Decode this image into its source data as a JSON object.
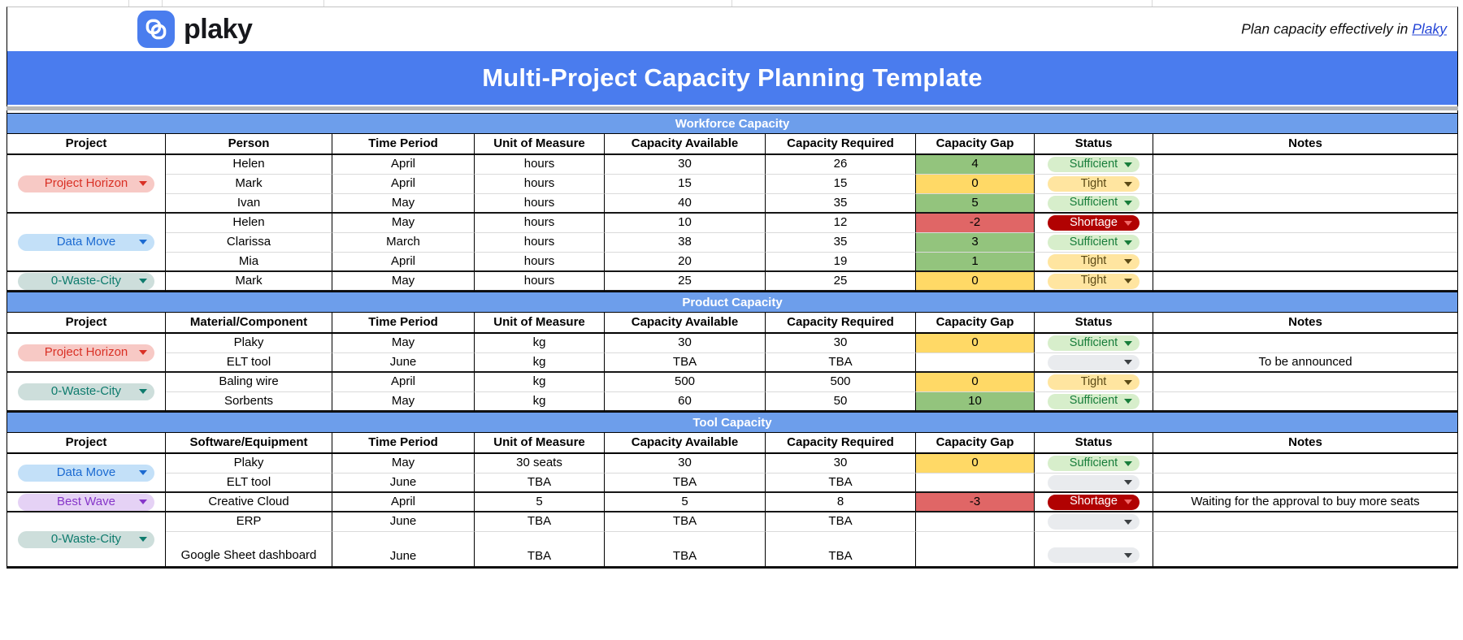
{
  "topbar": {
    "logo_text": "plaky",
    "tagline_prefix": "Plan capacity effectively in ",
    "tagline_link": "Plaky"
  },
  "banner": {
    "title": "Multi-Project Capacity Planning Template"
  },
  "colors": {
    "banner": "#4a7cee",
    "section_bar": "#6d9eeb",
    "logo_badge": "#4a7dee",
    "link": "#2546d6",
    "gap": {
      "green": "#93c47d",
      "yellow": "#ffd966",
      "red": "#e06666"
    }
  },
  "project_themes": {
    "red": {
      "bg": "#f7c9c5",
      "fg": "#d93025"
    },
    "blue": {
      "bg": "#c3e0f8",
      "fg": "#1b6ad1"
    },
    "teal": {
      "bg": "#cddedb",
      "fg": "#0e7b6d"
    },
    "purple": {
      "bg": "#e5d2f5",
      "fg": "#8636c9"
    }
  },
  "status_themes": {
    "green": {
      "bg": "#d7eecb",
      "fg": "#177d3a",
      "tri": "#177d3a"
    },
    "yellow": {
      "bg": "#ffe5a0",
      "fg": "#5b4a16",
      "tri": "#5b4a16"
    },
    "red": {
      "bg": "#b10202",
      "fg": "#ffffff",
      "tri": "#f06a6a"
    },
    "empty": {
      "bg": "#e9ebee",
      "fg": "#333333",
      "tri": "#3c4043"
    }
  },
  "sections": [
    {
      "title": "Workforce Capacity",
      "columns": [
        "Project",
        "Person",
        "Time Period",
        "Unit of Measure",
        "Capacity Available",
        "Capacity Required",
        "Capacity Gap",
        "Status",
        "Notes"
      ],
      "groups": [
        {
          "project": {
            "label": "Project Horizon",
            "theme": "red"
          },
          "rows": [
            {
              "name": "Helen",
              "period": "April",
              "unit": "hours",
              "available": "30",
              "required": "26",
              "gap": "4",
              "gap_color": "green",
              "status": "Sufficient",
              "status_theme": "green",
              "note": ""
            },
            {
              "name": "Mark",
              "period": "April",
              "unit": "hours",
              "available": "15",
              "required": "15",
              "gap": "0",
              "gap_color": "yellow",
              "status": "Tight",
              "status_theme": "yellow",
              "note": ""
            },
            {
              "name": "Ivan",
              "period": "May",
              "unit": "hours",
              "available": "40",
              "required": "35",
              "gap": "5",
              "gap_color": "green",
              "status": "Sufficient",
              "status_theme": "green",
              "note": ""
            }
          ]
        },
        {
          "project": {
            "label": "Data Move",
            "theme": "blue"
          },
          "rows": [
            {
              "name": "Helen",
              "period": "May",
              "unit": "hours",
              "available": "10",
              "required": "12",
              "gap": "-2",
              "gap_color": "red",
              "status": "Shortage",
              "status_theme": "red",
              "note": ""
            },
            {
              "name": "Clarissa",
              "period": "March",
              "unit": "hours",
              "available": "38",
              "required": "35",
              "gap": "3",
              "gap_color": "green",
              "status": "Sufficient",
              "status_theme": "green",
              "note": ""
            },
            {
              "name": "Mia",
              "period": "April",
              "unit": "hours",
              "available": "20",
              "required": "19",
              "gap": "1",
              "gap_color": "green",
              "status": "Tight",
              "status_theme": "yellow",
              "note": ""
            }
          ]
        },
        {
          "project": {
            "label": "0-Waste-City",
            "theme": "teal"
          },
          "rows": [
            {
              "name": "Mark",
              "period": "May",
              "unit": "hours",
              "available": "25",
              "required": "25",
              "gap": "0",
              "gap_color": "yellow",
              "status": "Tight",
              "status_theme": "yellow",
              "note": ""
            }
          ]
        }
      ]
    },
    {
      "title": "Product Capacity",
      "columns": [
        "Project",
        "Material/Component",
        "Time Period",
        "Unit of Measure",
        "Capacity Available",
        "Capacity Required",
        "Capacity Gap",
        "Status",
        "Notes"
      ],
      "groups": [
        {
          "project": {
            "label": "Project Horizon",
            "theme": "red"
          },
          "rows": [
            {
              "name": "Plaky",
              "period": "May",
              "unit": "kg",
              "available": "30",
              "required": "30",
              "gap": "0",
              "gap_color": "yellow",
              "status": "Sufficient",
              "status_theme": "green",
              "note": ""
            },
            {
              "name": "ELT tool",
              "period": "June",
              "unit": "kg",
              "available": "TBA",
              "required": "TBA",
              "gap": "",
              "gap_color": "",
              "status": "",
              "status_theme": "empty",
              "note": "To be announced"
            }
          ]
        },
        {
          "project": {
            "label": "0-Waste-City",
            "theme": "teal"
          },
          "rows": [
            {
              "name": "Baling wire",
              "period": "April",
              "unit": "kg",
              "available": "500",
              "required": "500",
              "gap": "0",
              "gap_color": "yellow",
              "status": "Tight",
              "status_theme": "yellow",
              "note": ""
            },
            {
              "name": "Sorbents",
              "period": "May",
              "unit": "kg",
              "available": "60",
              "required": "50",
              "gap": "10",
              "gap_color": "green",
              "status": "Sufficient",
              "status_theme": "green",
              "note": ""
            }
          ]
        }
      ]
    },
    {
      "title": "Tool Capacity",
      "columns": [
        "Project",
        "Software/Equipment",
        "Time Period",
        "Unit of Measure",
        "Capacity Available",
        "Capacity Required",
        "Capacity Gap",
        "Status",
        "Notes"
      ],
      "groups": [
        {
          "project": {
            "label": "Data Move",
            "theme": "blue"
          },
          "rows": [
            {
              "name": "Plaky",
              "period": "May",
              "unit": "30 seats",
              "available": "30",
              "required": "30",
              "gap": "0",
              "gap_color": "yellow",
              "status": "Sufficient",
              "status_theme": "green",
              "note": ""
            },
            {
              "name": "ELT tool",
              "period": "June",
              "unit": "TBA",
              "available": "TBA",
              "required": "TBA",
              "gap": "",
              "gap_color": "",
              "status": "",
              "status_theme": "empty",
              "note": ""
            }
          ]
        },
        {
          "project": {
            "label": "Best Wave",
            "theme": "purple"
          },
          "rows": [
            {
              "name": "Creative Cloud",
              "period": "April",
              "unit": "5",
              "available": "5",
              "required": "8",
              "gap": "-3",
              "gap_color": "red",
              "status": "Shortage",
              "status_theme": "red",
              "note": "Waiting for the approval to buy more seats"
            }
          ]
        },
        {
          "project": {
            "label": "0-Waste-City",
            "theme": "teal"
          },
          "rows": [
            {
              "name": "ERP",
              "period": "June",
              "unit": "TBA",
              "available": "TBA",
              "required": "TBA",
              "gap": "",
              "gap_color": "",
              "status": "",
              "status_theme": "empty",
              "note": ""
            },
            {
              "name": "Google Sheet dashboard",
              "period": "June",
              "unit": "TBA",
              "available": "TBA",
              "required": "TBA",
              "gap": "",
              "gap_color": "",
              "status": "",
              "status_theme": "empty",
              "note": "",
              "tall": true
            }
          ]
        }
      ]
    }
  ]
}
